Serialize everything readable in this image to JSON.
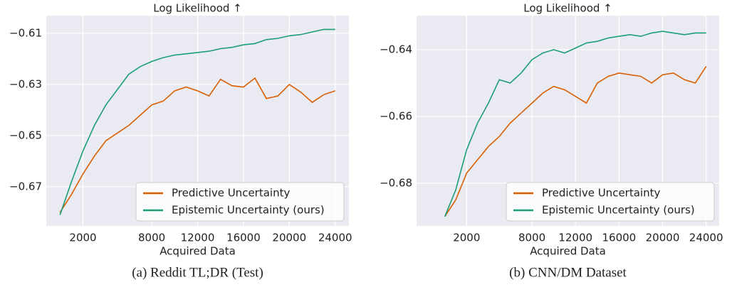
{
  "chart_data": [
    {
      "type": "line",
      "title": "Log Likelihood ↑",
      "x_label": "Acquired Data",
      "caption": "(a) Reddit TL;DR (Test)",
      "x": [
        0,
        1000,
        2000,
        3000,
        4000,
        5000,
        6000,
        7000,
        8000,
        9000,
        10000,
        11000,
        12000,
        13000,
        14000,
        15000,
        16000,
        17000,
        18000,
        19000,
        20000,
        21000,
        22000,
        23000,
        24000
      ],
      "series": [
        {
          "name": "Predictive Uncertainty",
          "color": "#d95f02",
          "values": [
            -0.68,
            -0.673,
            -0.665,
            -0.658,
            -0.652,
            -0.649,
            -0.646,
            -0.642,
            -0.638,
            -0.6365,
            -0.6325,
            -0.631,
            -0.6325,
            -0.6345,
            -0.628,
            -0.6305,
            -0.631,
            -0.6275,
            -0.6355,
            -0.6345,
            -0.63,
            -0.633,
            -0.637,
            -0.634,
            -0.6325
          ]
        },
        {
          "name": "Epistemic Uncertainty (ours)",
          "color": "#1b9e77",
          "values": [
            -0.681,
            -0.668,
            -0.656,
            -0.646,
            -0.638,
            -0.632,
            -0.626,
            -0.623,
            -0.621,
            -0.6195,
            -0.6185,
            -0.618,
            -0.6175,
            -0.617,
            -0.616,
            -0.6155,
            -0.6145,
            -0.614,
            -0.6125,
            -0.612,
            -0.611,
            -0.6105,
            -0.6095,
            -0.6085,
            -0.6085
          ]
        }
      ],
      "xlim": [
        -1200,
        25200
      ],
      "xticks": [
        2000,
        8000,
        12000,
        16000,
        20000,
        24000
      ],
      "ylim": [
        -0.6853,
        -0.6031
      ],
      "yticks": [
        {
          "value": -0.67,
          "label": "−0.67"
        },
        {
          "value": -0.65,
          "label": "−0.65"
        },
        {
          "value": -0.63,
          "label": "−0.63"
        },
        {
          "value": -0.61,
          "label": "−0.61"
        }
      ],
      "grid": true,
      "legend": "lower right"
    },
    {
      "type": "line",
      "title": "Log Likelihood ↑",
      "x_label": "Acquired Data",
      "caption": "(b) CNN/DM Dataset",
      "x": [
        0,
        1000,
        2000,
        3000,
        4000,
        5000,
        6000,
        7000,
        8000,
        9000,
        10000,
        11000,
        12000,
        13000,
        14000,
        15000,
        16000,
        17000,
        18000,
        19000,
        20000,
        21000,
        22000,
        23000,
        24000
      ],
      "series": [
        {
          "name": "Predictive Uncertainty",
          "color": "#d95f02",
          "values": [
            -0.69,
            -0.685,
            -0.677,
            -0.673,
            -0.669,
            -0.666,
            -0.662,
            -0.659,
            -0.656,
            -0.653,
            -0.651,
            -0.652,
            -0.654,
            -0.656,
            -0.65,
            -0.648,
            -0.647,
            -0.6475,
            -0.648,
            -0.65,
            -0.6475,
            -0.647,
            -0.649,
            -0.65,
            -0.645
          ]
        },
        {
          "name": "Epistemic Uncertainty (ours)",
          "color": "#1b9e77",
          "values": [
            -0.69,
            -0.682,
            -0.67,
            -0.662,
            -0.656,
            -0.649,
            -0.65,
            -0.647,
            -0.643,
            -0.641,
            -0.64,
            -0.641,
            -0.6395,
            -0.638,
            -0.6375,
            -0.6365,
            -0.636,
            -0.6355,
            -0.636,
            -0.635,
            -0.6345,
            -0.635,
            -0.6355,
            -0.635,
            -0.635
          ]
        }
      ],
      "xlim": [
        -2600,
        25200
      ],
      "xticks": [
        2000,
        8000,
        12000,
        16000,
        20000,
        24000
      ],
      "ylim": [
        -0.6928,
        -0.6298
      ],
      "yticks": [
        {
          "value": -0.68,
          "label": "−0.68"
        },
        {
          "value": -0.66,
          "label": "−0.66"
        },
        {
          "value": -0.64,
          "label": "−0.64"
        }
      ],
      "grid": true,
      "legend": "lower right"
    }
  ]
}
